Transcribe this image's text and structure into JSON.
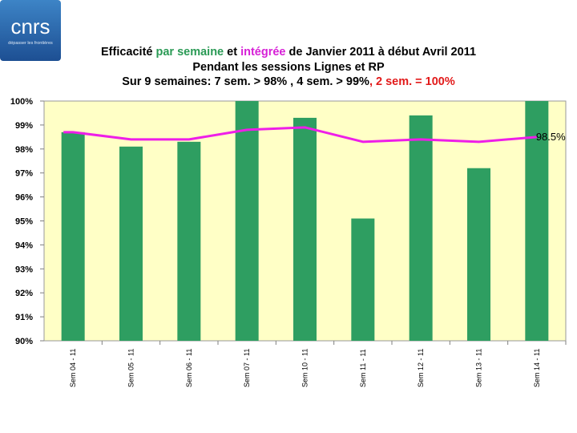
{
  "logo": {
    "text": "cnrs",
    "subtext": "dépasser les frontières"
  },
  "title": {
    "line1": {
      "p1": "Efficacité ",
      "p2": "par semaine",
      "p3": " et ",
      "p4": "intégrée",
      "p5": " de Janvier 2011 à début Avril 2011"
    },
    "line2": "Pendant  les sessions  Lignes et RP",
    "line3": {
      "p1": "Sur 9 semaines:  7 sem.  > 98%  , 4 sem. > 99%",
      "p2": ",",
      "p3": " 2 sem.  = 100%"
    }
  },
  "colors": {
    "bar": "#2e9e61",
    "line": "#ee1ee8",
    "plot_bg": "#ffffc6",
    "green_text": "#2a9a55",
    "magenta_text": "#d61fd6",
    "red_text": "#e21a1a"
  },
  "chart_data": {
    "type": "bar",
    "categories": [
      "Sem 04 - 11",
      "Sem 05 - 11",
      "Sem 06 - 11",
      "Sem 07 - 11",
      "Sem 10 - 11",
      "Sem 11 - 11",
      "Sem 12 - 11",
      "Sem 13 - 11",
      "Sem 14 - 11"
    ],
    "series": [
      {
        "name": "par semaine",
        "type": "bar",
        "values": [
          98.7,
          98.1,
          98.3,
          100.0,
          99.3,
          95.1,
          99.4,
          97.2,
          100.0
        ]
      },
      {
        "name": "intégrée",
        "type": "line",
        "values": [
          98.7,
          98.4,
          98.4,
          98.8,
          98.9,
          98.3,
          98.4,
          98.3,
          98.5
        ]
      }
    ],
    "ylim": [
      90,
      100
    ],
    "yticks": [
      "90%",
      "91%",
      "92%",
      "93%",
      "94%",
      "95%",
      "96%",
      "97%",
      "98%",
      "99%",
      "100%"
    ],
    "annotation": "98.5%",
    "grid": false
  }
}
